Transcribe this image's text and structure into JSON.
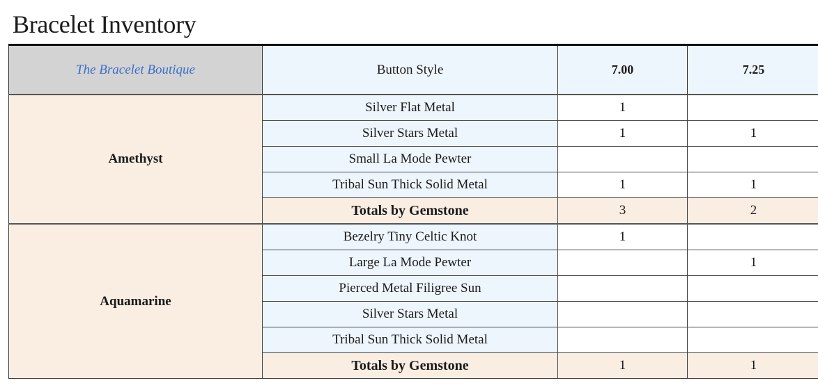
{
  "title": "Bracelet Inventory",
  "header": {
    "brand": "The Bracelet Boutique",
    "style_col": "Button Style",
    "size_cols": [
      "7.00",
      "7.25"
    ]
  },
  "colors": {
    "header_gray": "#d3d3d3",
    "brand_text": "#3a6fc9",
    "style_bg": "#eef6fd",
    "gem_bg": "#faede2"
  },
  "groups": [
    {
      "gemstone": "Amethyst",
      "rows": [
        {
          "style": "Silver Flat Metal",
          "s700": "1",
          "s725": ""
        },
        {
          "style": "Silver Stars Metal",
          "s700": "1",
          "s725": "1"
        },
        {
          "style": "Small La Mode Pewter",
          "s700": "",
          "s725": ""
        },
        {
          "style": "Tribal Sun Thick Solid Metal",
          "s700": "1",
          "s725": "1"
        }
      ],
      "total": {
        "label": "Totals by Gemstone",
        "s700": "3",
        "s725": "2"
      }
    },
    {
      "gemstone": "Aquamarine",
      "rows": [
        {
          "style": "Bezelry Tiny Celtic Knot",
          "s700": "1",
          "s725": ""
        },
        {
          "style": "Large La Mode Pewter",
          "s700": "",
          "s725": "1"
        },
        {
          "style": "Pierced Metal Filigree Sun",
          "s700": "",
          "s725": ""
        },
        {
          "style": "Silver Stars Metal",
          "s700": "",
          "s725": ""
        },
        {
          "style": "Tribal Sun Thick Solid Metal",
          "s700": "",
          "s725": ""
        }
      ],
      "total": {
        "label": "Totals by Gemstone",
        "s700": "1",
        "s725": "1"
      }
    }
  ]
}
